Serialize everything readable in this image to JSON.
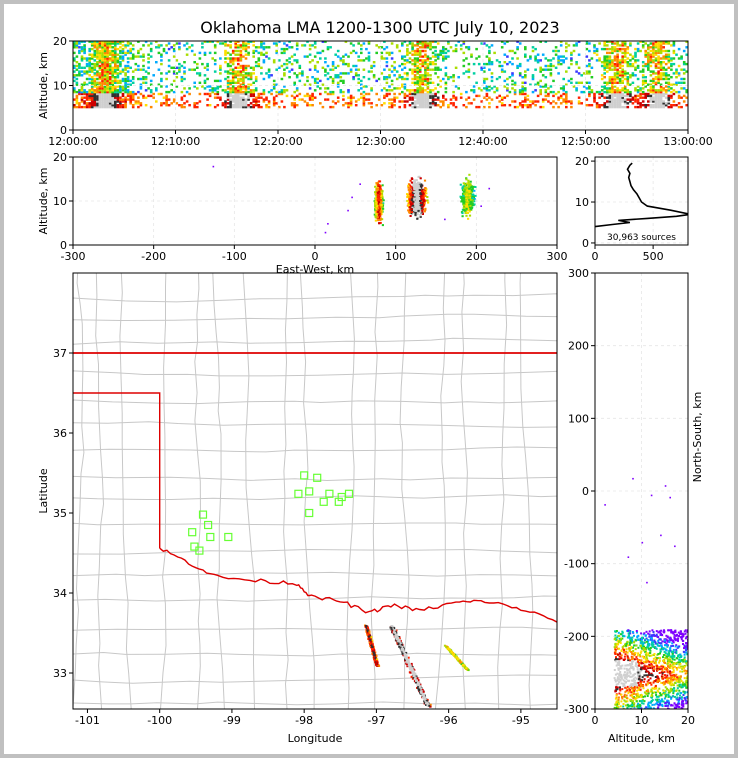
{
  "title": "Oklahoma LMA 1200-1300 UTC July 10, 2023",
  "colors": {
    "state_border": "#dd0000",
    "county_lines": "#c8c8c8",
    "station_marker": "#66ff33",
    "density_ramp": [
      "#7f00ff",
      "#3a3aff",
      "#00aaff",
      "#00d0a0",
      "#22cc22",
      "#aadd00",
      "#ffdd00",
      "#ff8800",
      "#ff2200",
      "#cc0000",
      "#303030",
      "#cfcfcf"
    ]
  },
  "chart_data": [
    {
      "id": "time_height",
      "type": "heatmap",
      "ylabel": "Altitude, km",
      "xlabel": "",
      "xticks": [
        "12:00:00",
        "12:10:00",
        "12:20:00",
        "12:30:00",
        "12:40:00",
        "12:50:00",
        "13:00:00"
      ],
      "xlim": [
        "12:00:00",
        "13:00:00"
      ],
      "ylim": [
        0,
        20
      ],
      "yticks": [
        0,
        10,
        20
      ],
      "bursts": [
        {
          "t_min": 3,
          "alt": 7
        },
        {
          "t_min": 16,
          "alt": 8
        },
        {
          "t_min": 34,
          "alt": 7
        },
        {
          "t_min": 53,
          "alt": 8
        },
        {
          "t_min": 57,
          "alt": 7
        }
      ]
    },
    {
      "id": "ew_altitude",
      "type": "heatmap",
      "xlabel": "East-West, km",
      "ylabel": "Altitude, km",
      "xlim": [
        -300,
        300
      ],
      "ylim": [
        0,
        20
      ],
      "xticks": [
        -300,
        -200,
        -100,
        0,
        100,
        200,
        300
      ],
      "yticks": [
        0,
        10,
        20
      ],
      "clusters": [
        {
          "x": 78,
          "alt": 10,
          "xw": 6,
          "intensity": 0.7
        },
        {
          "x": 125,
          "alt": 11,
          "xw": 14,
          "intensity": 1.0
        },
        {
          "x": 188,
          "alt": 11,
          "xw": 10,
          "intensity": 0.45
        }
      ]
    },
    {
      "id": "altitude_histogram",
      "type": "line",
      "xlim": [
        0,
        800
      ],
      "ylim": [
        0,
        20
      ],
      "xticks": [
        0,
        500
      ],
      "yticks": [
        0,
        10,
        20
      ],
      "annotation": "30,963 sources",
      "profile": [
        [
          0,
          4
        ],
        [
          150,
          4.5
        ],
        [
          300,
          5
        ],
        [
          200,
          5.5
        ],
        [
          450,
          6
        ],
        [
          700,
          6.5
        ],
        [
          820,
          7
        ],
        [
          650,
          8
        ],
        [
          450,
          9
        ],
        [
          400,
          10
        ],
        [
          380,
          11
        ],
        [
          360,
          12
        ],
        [
          330,
          13
        ],
        [
          310,
          14
        ],
        [
          300,
          15
        ],
        [
          290,
          16
        ],
        [
          300,
          17
        ],
        [
          280,
          18
        ],
        [
          300,
          19
        ],
        [
          320,
          19.5
        ]
      ]
    },
    {
      "id": "plan_view",
      "type": "scatter",
      "xlabel": "Longitude",
      "ylabel": "Latitude",
      "xlim": [
        -101.2,
        -94.5
      ],
      "ylim": [
        32.55,
        38.0
      ],
      "xticks": [
        -101,
        -100,
        -99,
        -98,
        -97,
        -96,
        -95
      ],
      "yticks": [
        33,
        34,
        35,
        36,
        37
      ],
      "stations": [
        [
          -98.0,
          35.47
        ],
        [
          -97.82,
          35.44
        ],
        [
          -98.08,
          35.24
        ],
        [
          -97.93,
          35.27
        ],
        [
          -97.65,
          35.24
        ],
        [
          -97.48,
          35.2
        ],
        [
          -97.38,
          35.24
        ],
        [
          -97.73,
          35.14
        ],
        [
          -97.52,
          35.14
        ],
        [
          -97.93,
          35.0
        ],
        [
          -99.4,
          34.98
        ],
        [
          -99.33,
          34.85
        ],
        [
          -99.55,
          34.76
        ],
        [
          -99.3,
          34.7
        ],
        [
          -99.05,
          34.7
        ],
        [
          -99.52,
          34.58
        ],
        [
          -99.45,
          34.53
        ]
      ],
      "storms": [
        {
          "lon1": -97.15,
          "lat1": 33.6,
          "lon2": -97.0,
          "lat2": 33.1,
          "w": 0.04,
          "intensity": 0.8
        },
        {
          "lon1": -96.8,
          "lat1": 33.6,
          "lon2": -96.3,
          "lat2": 32.6,
          "w": 0.07,
          "intensity": 1.0
        },
        {
          "lon1": -96.05,
          "lat1": 33.35,
          "lon2": -95.75,
          "lat2": 33.05,
          "w": 0.04,
          "intensity": 0.5
        }
      ]
    },
    {
      "id": "ns_altitude",
      "type": "heatmap",
      "xlabel": "Altitude, km",
      "ylabel": "North-South, km",
      "xlim": [
        0,
        20
      ],
      "ylim": [
        -300,
        300
      ],
      "xticks": [
        0,
        10,
        20
      ],
      "yticks": [
        -300,
        -200,
        -100,
        0,
        100,
        200,
        300
      ]
    }
  ]
}
